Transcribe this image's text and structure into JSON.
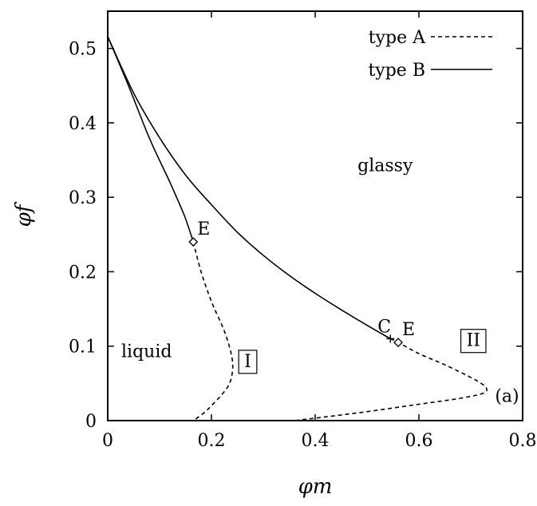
{
  "chart_data": {
    "type": "line",
    "xlabel": "φm",
    "ylabel": "φf",
    "xlim": [
      0,
      0.8
    ],
    "ylim": [
      0,
      0.55
    ],
    "grid": false,
    "legend_position": "top-right",
    "xticks": [
      0,
      0.2,
      0.4,
      0.6,
      0.8
    ],
    "xtick_labels": [
      "0",
      "0.2",
      "0.4",
      "0.6",
      "0.8"
    ],
    "yticks": [
      0,
      0.1,
      0.2,
      0.3,
      0.4,
      0.5
    ],
    "ytick_labels": [
      "0",
      "0.1",
      "0.2",
      "0.3",
      "0.4",
      "0.5"
    ],
    "legend": [
      {
        "label": "type A",
        "style": "dashed"
      },
      {
        "label": "type B",
        "style": "solid"
      }
    ],
    "series": [
      {
        "name": "type B",
        "style": "solid",
        "x": [
          0,
          0.04,
          0.08,
          0.12,
          0.148,
          0.165
        ],
        "y": [
          0.516,
          0.45,
          0.38,
          0.32,
          0.275,
          0.24
        ]
      },
      {
        "name": "type B",
        "style": "solid",
        "x": [
          0,
          0.05,
          0.1,
          0.15,
          0.2,
          0.25,
          0.3,
          0.35,
          0.4,
          0.45,
          0.5,
          0.545
        ],
        "y": [
          0.516,
          0.44,
          0.38,
          0.33,
          0.29,
          0.253,
          0.222,
          0.195,
          0.171,
          0.149,
          0.128,
          0.11
        ]
      },
      {
        "name": "type A",
        "style": "dashed",
        "x": [
          0.165,
          0.18,
          0.2,
          0.225,
          0.238,
          0.241,
          0.235,
          0.22,
          0.2,
          0.185,
          0.165
        ],
        "y": [
          0.24,
          0.2,
          0.16,
          0.12,
          0.09,
          0.07,
          0.05,
          0.035,
          0.02,
          0.01,
          0.0
        ]
      },
      {
        "name": "type A",
        "style": "dashed",
        "x": [
          0.545,
          0.56,
          0.6,
          0.65,
          0.7,
          0.72,
          0.73,
          0.725,
          0.68,
          0.6,
          0.5,
          0.42,
          0.36
        ],
        "y": [
          0.11,
          0.105,
          0.09,
          0.075,
          0.058,
          0.05,
          0.044,
          0.037,
          0.03,
          0.022,
          0.012,
          0.005,
          0.0
        ]
      }
    ],
    "markers": [
      {
        "label": "E",
        "shape": "diamond",
        "x": 0.165,
        "y": 0.24
      },
      {
        "label": "E",
        "shape": "diamond",
        "x": 0.56,
        "y": 0.105
      },
      {
        "label": "C",
        "shape": "plus",
        "x": 0.545,
        "y": 0.11
      }
    ],
    "annotations": [
      {
        "text": "glassy",
        "x": 0.535,
        "y": 0.335,
        "boxed": false
      },
      {
        "text": "liquid",
        "x": 0.075,
        "y": 0.085,
        "boxed": false
      },
      {
        "text": "I",
        "x": 0.27,
        "y": 0.072,
        "boxed": true
      },
      {
        "text": "II",
        "x": 0.705,
        "y": 0.1,
        "boxed": true
      },
      {
        "text": "(a)",
        "x": 0.77,
        "y": 0.025,
        "boxed": false
      }
    ]
  }
}
